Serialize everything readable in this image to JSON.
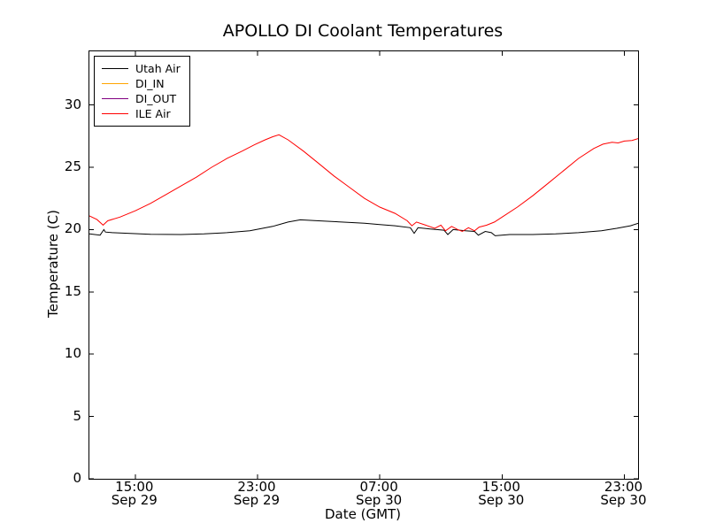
{
  "chart_data": {
    "type": "line",
    "title": "APOLLO DI Coolant Temperatures",
    "xlabel": "Date (GMT)",
    "ylabel": "Temperature (C)",
    "grid": false,
    "legend_position": "upper left",
    "background_color": "#ffffff",
    "axis_color": "#000000",
    "x_unit": "hours since Sep 29 12:00 GMT",
    "xlim": [
      0,
      35.9
    ],
    "ylim": [
      0,
      34.3
    ],
    "yticks": [
      0,
      5,
      10,
      15,
      20,
      25,
      30
    ],
    "xticks": [
      {
        "h": 3,
        "time": "15:00",
        "date": "Sep 29"
      },
      {
        "h": 11,
        "time": "23:00",
        "date": "Sep 29"
      },
      {
        "h": 19,
        "time": "07:00",
        "date": "Sep 30"
      },
      {
        "h": 27,
        "time": "15:00",
        "date": "Sep 30"
      },
      {
        "h": 35,
        "time": "23:00",
        "date": "Sep 30"
      }
    ],
    "series": [
      {
        "name": "Utah Air",
        "color": "#000000",
        "x": [
          0,
          0.7,
          0.95,
          1.05,
          1.5,
          2.5,
          4,
          6,
          7.5,
          9,
          10.5,
          12,
          13,
          13.8,
          15,
          16.5,
          18,
          19,
          20,
          21,
          21.25,
          21.5,
          22.3,
          23.2,
          23.45,
          23.8,
          24.6,
          25.2,
          25.45,
          25.9,
          26.3,
          26.55,
          27.5,
          29,
          30.5,
          32,
          33.5,
          34.5,
          35.4,
          35.9
        ],
        "y": [
          19.65,
          19.55,
          20.0,
          19.8,
          19.75,
          19.7,
          19.62,
          19.6,
          19.65,
          19.75,
          19.9,
          20.25,
          20.6,
          20.78,
          20.7,
          20.6,
          20.5,
          20.4,
          20.3,
          20.15,
          19.7,
          20.15,
          20.05,
          19.95,
          19.6,
          20.0,
          19.9,
          19.85,
          19.55,
          19.85,
          19.75,
          19.5,
          19.6,
          19.6,
          19.65,
          19.75,
          19.9,
          20.1,
          20.3,
          20.5
        ]
      },
      {
        "name": "DI_IN",
        "color": "#ffa500",
        "x": [],
        "y": []
      },
      {
        "name": "DI_OUT",
        "color": "#800080",
        "x": [],
        "y": []
      },
      {
        "name": "ILE Air",
        "color": "#ff0000",
        "x": [
          0,
          0.5,
          0.9,
          1.2,
          2,
          3,
          4,
          5,
          6,
          7,
          8,
          9,
          10,
          10.8,
          11.5,
          12,
          12.4,
          13,
          14,
          15,
          16,
          17,
          18,
          19,
          20,
          20.8,
          21.1,
          21.4,
          22,
          22.6,
          23,
          23.3,
          23.7,
          24.1,
          24.4,
          24.8,
          25.2,
          25.5,
          26,
          26.5,
          27,
          28,
          29,
          30,
          31,
          32,
          33,
          33.6,
          34.2,
          34.6,
          35,
          35.5,
          35.9
        ],
        "y": [
          21.1,
          20.8,
          20.35,
          20.7,
          21.0,
          21.5,
          22.1,
          22.8,
          23.5,
          24.2,
          25.0,
          25.7,
          26.3,
          26.8,
          27.2,
          27.45,
          27.6,
          27.2,
          26.3,
          25.3,
          24.3,
          23.4,
          22.5,
          21.8,
          21.3,
          20.7,
          20.3,
          20.6,
          20.35,
          20.1,
          20.35,
          19.9,
          20.25,
          20.0,
          19.85,
          20.15,
          19.9,
          20.2,
          20.35,
          20.6,
          21.0,
          21.8,
          22.7,
          23.7,
          24.7,
          25.7,
          26.5,
          26.85,
          27.0,
          26.95,
          27.1,
          27.15,
          27.3
        ]
      }
    ]
  }
}
